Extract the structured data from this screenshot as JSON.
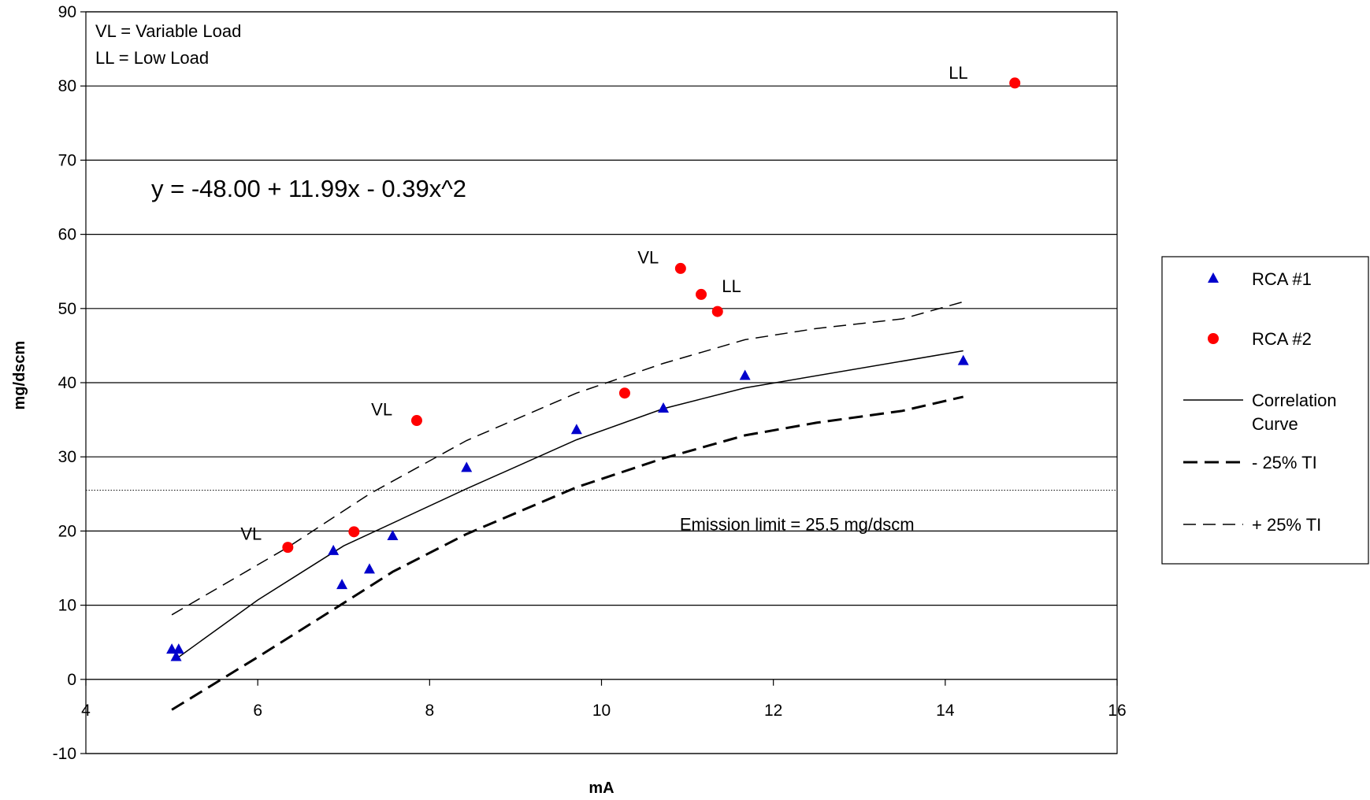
{
  "chart_data": {
    "type": "scatter",
    "xlabel": "mA",
    "ylabel": "mg/dscm",
    "xlim": [
      4,
      16
    ],
    "ylim": [
      -10,
      90
    ],
    "xticks": [
      4,
      6,
      8,
      10,
      12,
      14,
      16
    ],
    "yticks": [
      -10,
      0,
      10,
      20,
      30,
      40,
      50,
      60,
      70,
      80,
      90
    ],
    "grid": "horizontal",
    "legend_position": "right",
    "equation": "y = -48.00 + 11.99x - 0.39x^2",
    "notes": [
      "VL = Variable Load",
      "LL = Low Load"
    ],
    "emission_limit": {
      "value": 25.5,
      "label": "Emission limit = 25.5 mg/dscm"
    },
    "series": [
      {
        "name": "RCA #1",
        "kind": "points",
        "marker": "triangle",
        "color": "#0000cc",
        "points": [
          [
            5.0,
            4.0
          ],
          [
            5.05,
            3.0
          ],
          [
            5.08,
            4.0
          ],
          [
            6.88,
            17.3
          ],
          [
            6.98,
            12.7
          ],
          [
            7.3,
            14.8
          ],
          [
            7.57,
            19.3
          ],
          [
            8.43,
            28.5
          ],
          [
            9.71,
            33.6
          ],
          [
            10.72,
            36.5
          ],
          [
            11.67,
            40.9
          ],
          [
            14.21,
            42.9
          ]
        ]
      },
      {
        "name": "RCA #2",
        "kind": "points",
        "marker": "circle",
        "color": "#ff0000",
        "points": [
          [
            6.35,
            17.8
          ],
          [
            7.12,
            19.9
          ],
          [
            7.85,
            34.9
          ],
          [
            10.27,
            38.6
          ],
          [
            10.92,
            55.4
          ],
          [
            11.16,
            51.9
          ],
          [
            11.35,
            49.6
          ],
          [
            14.81,
            80.4
          ]
        ]
      },
      {
        "name": "Correlation Curve",
        "kind": "line",
        "style": "solid",
        "color": "#000000",
        "points": [
          [
            5.08,
            3.0
          ],
          [
            6.0,
            10.7
          ],
          [
            7.0,
            18.0
          ],
          [
            8.43,
            25.7
          ],
          [
            9.71,
            32.3
          ],
          [
            10.72,
            36.5
          ],
          [
            11.67,
            39.3
          ],
          [
            14.21,
            44.3
          ]
        ]
      },
      {
        "name": "- 25% TI",
        "kind": "line",
        "style": "dash-thick",
        "color": "#000000",
        "points": [
          [
            5.0,
            -4.1
          ],
          [
            6.0,
            3.0
          ],
          [
            7.0,
            10.3
          ],
          [
            7.3,
            12.5
          ],
          [
            7.57,
            14.5
          ],
          [
            8.43,
            19.6
          ],
          [
            9.71,
            25.9
          ],
          [
            10.72,
            29.8
          ],
          [
            11.67,
            32.9
          ],
          [
            12.5,
            34.6
          ],
          [
            13.5,
            36.2
          ],
          [
            14.21,
            38.1
          ]
        ]
      },
      {
        "name": "+ 25% TI",
        "kind": "line",
        "style": "dash-thin",
        "color": "#000000",
        "points": [
          [
            5.0,
            8.7
          ],
          [
            6.35,
            17.8
          ],
          [
            7.3,
            25.0
          ],
          [
            8.43,
            32.2
          ],
          [
            9.71,
            38.6
          ],
          [
            10.72,
            42.6
          ],
          [
            11.67,
            45.8
          ],
          [
            12.5,
            47.3
          ],
          [
            13.5,
            48.6
          ],
          [
            14.21,
            50.9
          ]
        ]
      }
    ],
    "annotations": [
      {
        "text": "VL",
        "x": 5.8,
        "y": 18.8
      },
      {
        "text": "VL",
        "x": 7.32,
        "y": 35.6
      },
      {
        "text": "VL",
        "x": 10.42,
        "y": 56.1
      },
      {
        "text": "LL",
        "x": 11.4,
        "y": 52.2
      },
      {
        "text": "LL",
        "x": 14.04,
        "y": 81.0
      }
    ]
  },
  "legend": [
    {
      "label_lines": [
        "RCA #1"
      ],
      "key": "RCA #1",
      "icon": "triangle-marker-icon"
    },
    {
      "label_lines": [
        "RCA #2"
      ],
      "key": "RCA #2",
      "icon": "circle-marker-icon"
    },
    {
      "label_lines": [
        "Correlation",
        "Curve"
      ],
      "key": "Correlation Curve",
      "icon": "solid-line-icon"
    },
    {
      "label_lines": [
        "- 25% TI"
      ],
      "key": "- 25% TI",
      "icon": "thick-dash-line-icon"
    },
    {
      "label_lines": [
        "+ 25% TI"
      ],
      "key": "+ 25% TI",
      "icon": "thin-dash-line-icon"
    }
  ]
}
